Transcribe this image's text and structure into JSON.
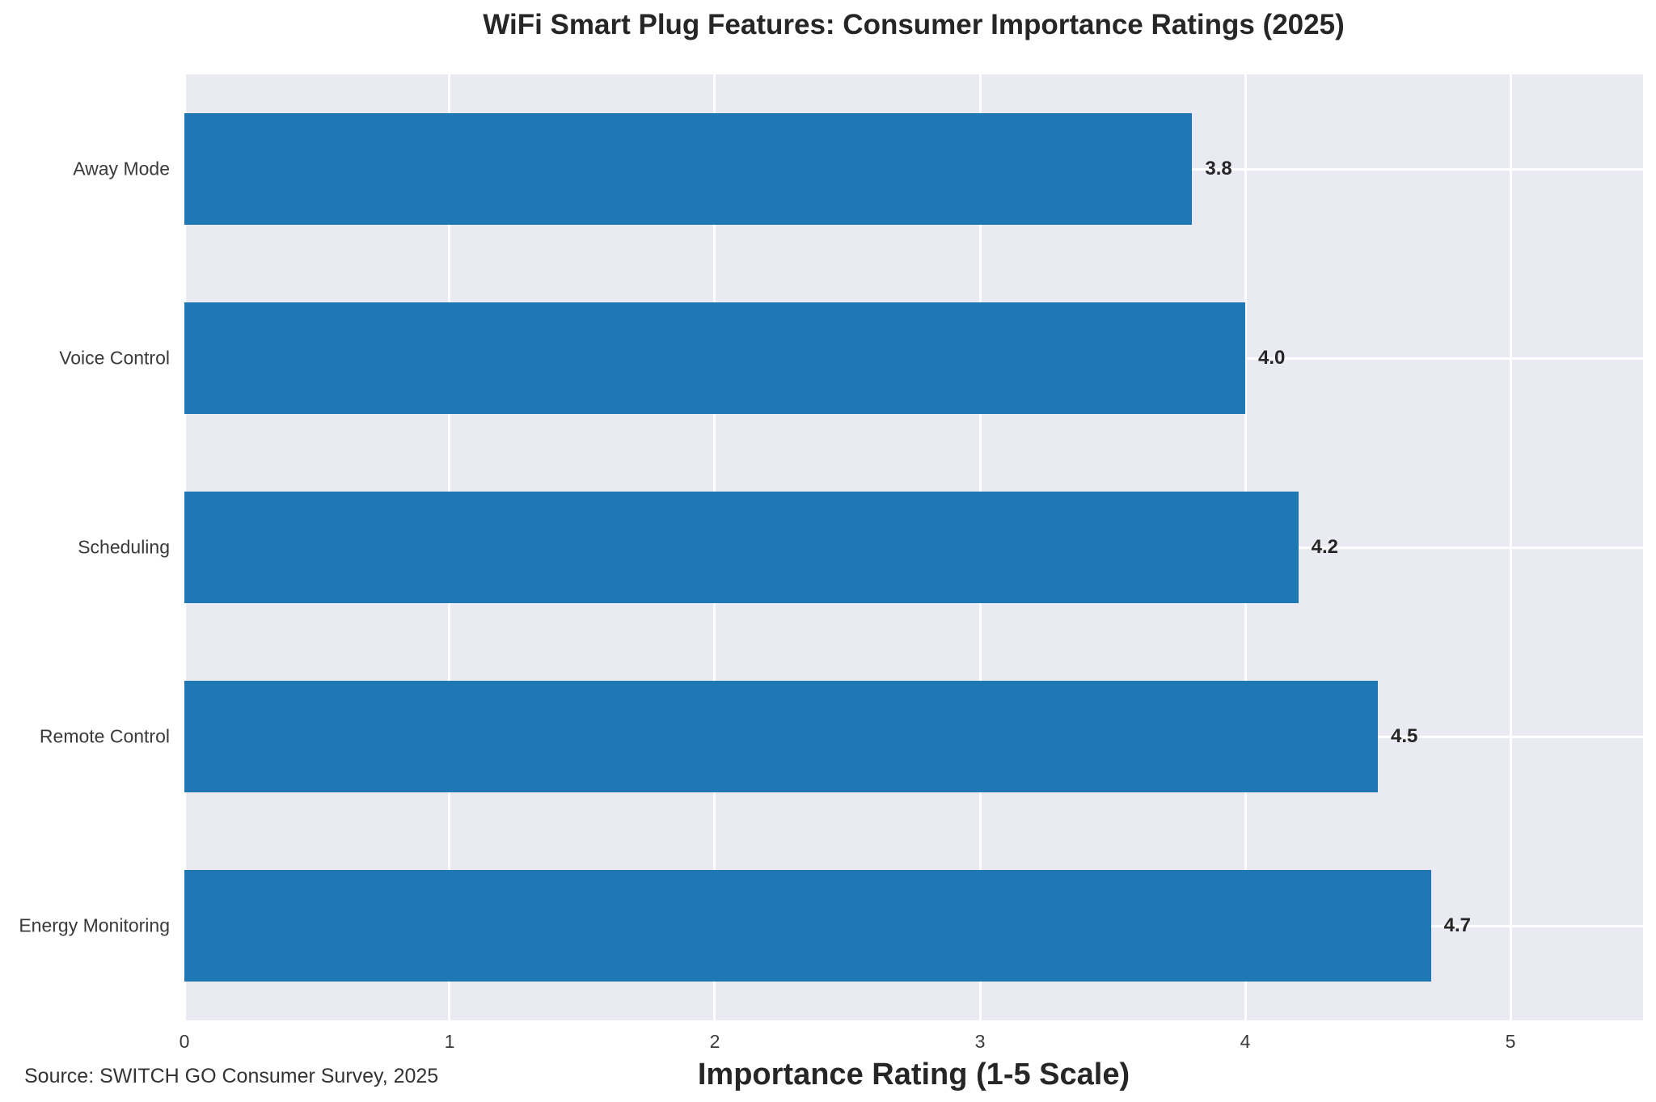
{
  "chart_data": {
    "type": "bar",
    "orientation": "horizontal",
    "title": "WiFi Smart Plug Features: Consumer Importance Ratings (2025)",
    "xlabel": "Importance Rating (1-5 Scale)",
    "ylabel": "",
    "categories": [
      "Away Mode",
      "Voice Control",
      "Scheduling",
      "Remote Control",
      "Energy Monitoring"
    ],
    "values": [
      3.8,
      4.0,
      4.2,
      4.5,
      4.7
    ],
    "value_labels": [
      "3.8",
      "4.0",
      "4.2",
      "4.5",
      "4.7"
    ],
    "xtick_labels": [
      "0",
      "1",
      "2",
      "3",
      "4",
      "5"
    ],
    "xtick_values": [
      0,
      1,
      2,
      3,
      4,
      5
    ],
    "xlim": [
      0,
      5.5
    ],
    "grid": true,
    "legend": false,
    "source": "Source: SWITCH GO Consumer Survey, 2025",
    "colors": {
      "bar": "#1f77b4",
      "plot_background": "#eaeaf2",
      "grid": "#ffffff",
      "title_text": "#262626",
      "tick_text": "#3a3a3a"
    }
  }
}
